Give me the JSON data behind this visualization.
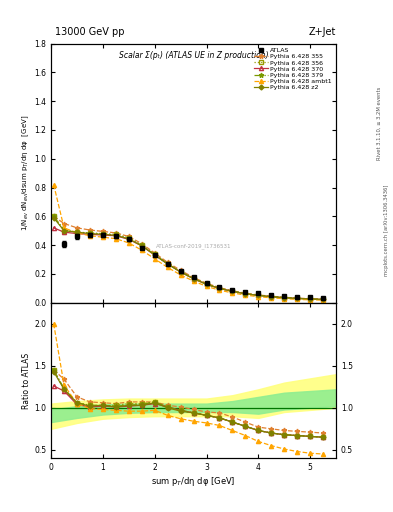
{
  "title_top": "13000 GeV pp",
  "title_right": "Z+Jet",
  "plot_title": "Scalar Σ(pₜ) (ATLAS UE in Z production)",
  "ylabel_main": "1/N$_{ev}$ dN$_{ev}$/dsum p$_T$/dη dφ  [GeV]",
  "ylabel_ratio": "Ratio to ATLAS",
  "xlabel": "sum p$_T$/dη dφ [GeV]",
  "right_label1": "Rivet 3.1.10, ≥ 3.2M events",
  "right_label2": "mcplots.cern.ch [arXiv:1306.3436]",
  "watermark": "ATLAS-conf-2019_I1736531",
  "xlim": [
    0,
    5.5
  ],
  "ylim_main": [
    0,
    1.8
  ],
  "ylim_ratio": [
    0.4,
    2.25
  ],
  "atlas_x": [
    0.25,
    0.5,
    0.75,
    1.0,
    1.25,
    1.5,
    1.75,
    2.0,
    2.25,
    2.5,
    2.75,
    3.0,
    3.25,
    3.5,
    3.75,
    4.0,
    4.25,
    4.5,
    4.75,
    5.0,
    5.25
  ],
  "atlas_y": [
    0.41,
    0.46,
    0.47,
    0.47,
    0.46,
    0.44,
    0.38,
    0.33,
    0.27,
    0.22,
    0.18,
    0.14,
    0.11,
    0.09,
    0.075,
    0.065,
    0.055,
    0.048,
    0.042,
    0.038,
    0.035
  ],
  "atlas_yerr": [
    0.02,
    0.015,
    0.015,
    0.012,
    0.012,
    0.01,
    0.01,
    0.009,
    0.008,
    0.007,
    0.006,
    0.005,
    0.004,
    0.004,
    0.003,
    0.003,
    0.003,
    0.002,
    0.002,
    0.002,
    0.002
  ],
  "py355_x": [
    0.05,
    0.25,
    0.5,
    0.75,
    1.0,
    1.25,
    1.5,
    1.75,
    2.0,
    2.25,
    2.5,
    2.75,
    3.0,
    3.25,
    3.5,
    3.75,
    4.0,
    4.25,
    4.5,
    4.75,
    5.0,
    5.25
  ],
  "py355_y": [
    0.6,
    0.55,
    0.52,
    0.505,
    0.495,
    0.485,
    0.46,
    0.41,
    0.345,
    0.28,
    0.225,
    0.175,
    0.135,
    0.105,
    0.083,
    0.066,
    0.054,
    0.045,
    0.038,
    0.032,
    0.028,
    0.025
  ],
  "py356_x": [
    0.05,
    0.25,
    0.5,
    0.75,
    1.0,
    1.25,
    1.5,
    1.75,
    2.0,
    2.25,
    2.5,
    2.75,
    3.0,
    3.25,
    3.5,
    3.75,
    4.0,
    4.25,
    4.5,
    4.75,
    5.0,
    5.25
  ],
  "py356_y": [
    0.6,
    0.5,
    0.49,
    0.485,
    0.48,
    0.475,
    0.45,
    0.4,
    0.335,
    0.27,
    0.215,
    0.168,
    0.13,
    0.1,
    0.08,
    0.063,
    0.051,
    0.042,
    0.036,
    0.03,
    0.026,
    0.023
  ],
  "py370_x": [
    0.05,
    0.25,
    0.5,
    0.75,
    1.0,
    1.25,
    1.5,
    1.75,
    2.0,
    2.25,
    2.5,
    2.75,
    3.0,
    3.25,
    3.5,
    3.75,
    4.0,
    4.25,
    4.5,
    4.75,
    5.0,
    5.25
  ],
  "py370_y": [
    0.52,
    0.49,
    0.48,
    0.475,
    0.47,
    0.465,
    0.44,
    0.395,
    0.33,
    0.27,
    0.213,
    0.167,
    0.128,
    0.099,
    0.079,
    0.062,
    0.051,
    0.042,
    0.035,
    0.03,
    0.026,
    0.023
  ],
  "py379_x": [
    0.05,
    0.25,
    0.5,
    0.75,
    1.0,
    1.25,
    1.5,
    1.75,
    2.0,
    2.25,
    2.5,
    2.75,
    3.0,
    3.25,
    3.5,
    3.75,
    4.0,
    4.25,
    4.5,
    4.75,
    5.0,
    5.25
  ],
  "py379_y": [
    0.6,
    0.505,
    0.49,
    0.483,
    0.477,
    0.47,
    0.447,
    0.398,
    0.335,
    0.27,
    0.215,
    0.168,
    0.13,
    0.1,
    0.08,
    0.063,
    0.051,
    0.042,
    0.036,
    0.03,
    0.026,
    0.023
  ],
  "pyambt1_x": [
    0.05,
    0.25,
    0.5,
    0.75,
    1.0,
    1.25,
    1.5,
    1.75,
    2.0,
    2.25,
    2.5,
    2.75,
    3.0,
    3.25,
    3.5,
    3.75,
    4.0,
    4.25,
    4.5,
    4.75,
    5.0,
    5.25
  ],
  "pyambt1_y": [
    0.82,
    0.52,
    0.485,
    0.465,
    0.455,
    0.445,
    0.415,
    0.365,
    0.305,
    0.245,
    0.193,
    0.15,
    0.114,
    0.087,
    0.068,
    0.053,
    0.042,
    0.034,
    0.028,
    0.023,
    0.02,
    0.018
  ],
  "pyz2_x": [
    0.05,
    0.25,
    0.5,
    0.75,
    1.0,
    1.25,
    1.5,
    1.75,
    2.0,
    2.25,
    2.5,
    2.75,
    3.0,
    3.25,
    3.5,
    3.75,
    4.0,
    4.25,
    4.5,
    4.75,
    5.0,
    5.25
  ],
  "pyz2_y": [
    0.59,
    0.5,
    0.49,
    0.48,
    0.475,
    0.468,
    0.443,
    0.395,
    0.332,
    0.268,
    0.213,
    0.167,
    0.128,
    0.099,
    0.079,
    0.062,
    0.051,
    0.042,
    0.035,
    0.03,
    0.026,
    0.023
  ],
  "band_yellow_x": [
    0.0,
    0.5,
    1.0,
    1.5,
    2.0,
    2.5,
    3.0,
    3.5,
    4.0,
    4.5,
    5.5
  ],
  "band_yellow_low": [
    0.75,
    0.82,
    0.87,
    0.89,
    0.9,
    0.9,
    0.9,
    0.9,
    0.88,
    0.95,
    1.0
  ],
  "band_yellow_high": [
    1.05,
    1.08,
    1.1,
    1.11,
    1.11,
    1.11,
    1.11,
    1.15,
    1.22,
    1.3,
    1.4
  ],
  "band_green_x": [
    0.0,
    0.5,
    1.0,
    1.5,
    2.0,
    2.5,
    3.0,
    3.5,
    4.0,
    4.5,
    5.5
  ],
  "band_green_low": [
    0.83,
    0.88,
    0.92,
    0.94,
    0.95,
    0.95,
    0.95,
    0.95,
    0.93,
    0.98,
    1.02
  ],
  "band_green_high": [
    0.98,
    1.02,
    1.04,
    1.05,
    1.05,
    1.05,
    1.05,
    1.08,
    1.13,
    1.18,
    1.22
  ],
  "ratio_355_x": [
    0.05,
    0.25,
    0.5,
    0.75,
    1.0,
    1.25,
    1.5,
    1.75,
    2.0,
    2.25,
    2.5,
    2.75,
    3.0,
    3.25,
    3.5,
    3.75,
    4.0,
    4.25,
    4.5,
    4.75,
    5.0,
    5.25
  ],
  "ratio_355_y": [
    1.45,
    1.34,
    1.13,
    1.07,
    1.06,
    1.05,
    1.07,
    1.07,
    1.07,
    1.03,
    1.01,
    0.98,
    0.95,
    0.94,
    0.89,
    0.83,
    0.77,
    0.75,
    0.73,
    0.72,
    0.71,
    0.7
  ],
  "ratio_356_x": [
    0.05,
    0.25,
    0.5,
    0.75,
    1.0,
    1.25,
    1.5,
    1.75,
    2.0,
    2.25,
    2.5,
    2.75,
    3.0,
    3.25,
    3.5,
    3.75,
    4.0,
    4.25,
    4.5,
    4.75,
    5.0,
    5.25
  ],
  "ratio_356_y": [
    1.45,
    1.22,
    1.06,
    1.03,
    1.02,
    1.03,
    1.05,
    1.05,
    1.07,
    1.01,
    0.97,
    0.94,
    0.91,
    0.88,
    0.83,
    0.78,
    0.73,
    0.7,
    0.68,
    0.67,
    0.66,
    0.65
  ],
  "ratio_370_x": [
    0.05,
    0.25,
    0.5,
    0.75,
    1.0,
    1.25,
    1.5,
    1.75,
    2.0,
    2.25,
    2.5,
    2.75,
    3.0,
    3.25,
    3.5,
    3.75,
    4.0,
    4.25,
    4.5,
    4.75,
    5.0,
    5.25
  ],
  "ratio_370_y": [
    1.26,
    1.2,
    1.04,
    1.01,
    1.02,
    1.01,
    1.02,
    1.03,
    1.05,
    1.01,
    0.97,
    0.94,
    0.91,
    0.88,
    0.83,
    0.78,
    0.73,
    0.7,
    0.68,
    0.67,
    0.66,
    0.65
  ],
  "ratio_379_x": [
    0.05,
    0.25,
    0.5,
    0.75,
    1.0,
    1.25,
    1.5,
    1.75,
    2.0,
    2.25,
    2.5,
    2.75,
    3.0,
    3.25,
    3.5,
    3.75,
    4.0,
    4.25,
    4.5,
    4.75,
    5.0,
    5.25
  ],
  "ratio_379_y": [
    1.45,
    1.23,
    1.06,
    1.03,
    1.03,
    1.02,
    1.03,
    1.04,
    1.07,
    1.01,
    0.97,
    0.94,
    0.91,
    0.88,
    0.83,
    0.78,
    0.73,
    0.7,
    0.68,
    0.67,
    0.66,
    0.65
  ],
  "ratio_ambt1_x": [
    0.05,
    0.25,
    0.5,
    0.75,
    1.0,
    1.25,
    1.5,
    1.75,
    2.0,
    2.25,
    2.5,
    2.75,
    3.0,
    3.25,
    3.5,
    3.75,
    4.0,
    4.25,
    4.5,
    4.75,
    5.0,
    5.25
  ],
  "ratio_ambt1_y": [
    2.0,
    1.27,
    1.05,
    0.99,
    0.98,
    0.97,
    0.96,
    0.96,
    0.97,
    0.91,
    0.87,
    0.84,
    0.82,
    0.79,
    0.73,
    0.67,
    0.6,
    0.55,
    0.51,
    0.48,
    0.46,
    0.45
  ],
  "ratio_z2_x": [
    0.05,
    0.25,
    0.5,
    0.75,
    1.0,
    1.25,
    1.5,
    1.75,
    2.0,
    2.25,
    2.5,
    2.75,
    3.0,
    3.25,
    3.5,
    3.75,
    4.0,
    4.25,
    4.5,
    4.75,
    5.0,
    5.25
  ],
  "ratio_z2_y": [
    1.43,
    1.22,
    1.06,
    1.02,
    1.03,
    1.01,
    1.03,
    1.03,
    1.06,
    1.0,
    0.96,
    0.94,
    0.91,
    0.88,
    0.83,
    0.78,
    0.73,
    0.7,
    0.68,
    0.67,
    0.66,
    0.65
  ],
  "color_355": "#e08030",
  "color_356": "#999900",
  "color_370": "#c03040",
  "color_379": "#7a9900",
  "color_ambt1": "#FFA500",
  "color_z2": "#808000"
}
